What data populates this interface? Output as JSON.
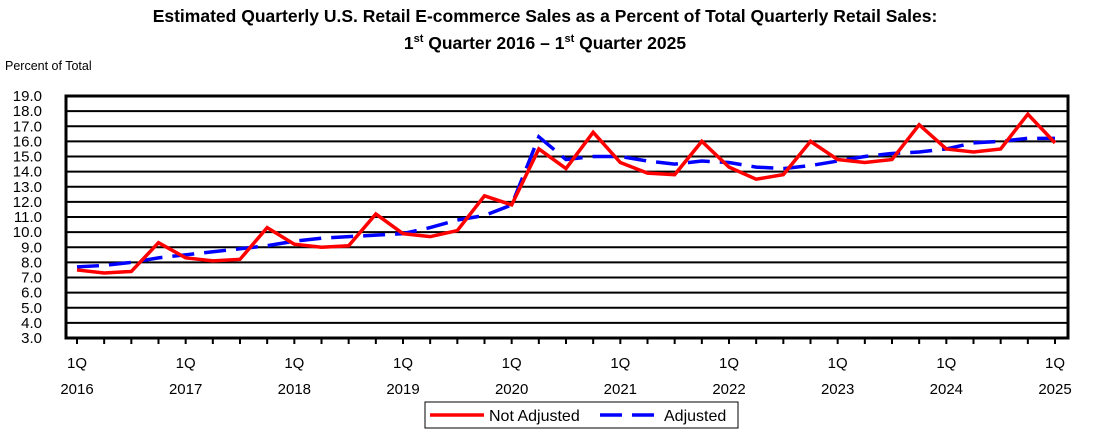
{
  "chart_data": {
    "type": "line",
    "title_line1": "Estimated Quarterly U.S. Retail E-commerce Sales as a Percent of Total Quarterly Retail Sales:",
    "title_line2": {
      "q1": "1",
      "sup1": "st",
      "mid": " Quarter 2016 – ",
      "q2": "1",
      "sup2": "st",
      "end": " Quarter 2025"
    },
    "ylabel": "Percent of Total",
    "ylim": [
      3.0,
      19.0
    ],
    "yticks": [
      "3.0",
      "4.0",
      "5.0",
      "6.0",
      "7.0",
      "8.0",
      "9.0",
      "10.0",
      "11.0",
      "12.0",
      "13.0",
      "14.0",
      "15.0",
      "16.0",
      "17.0",
      "18.0",
      "19.0"
    ],
    "grid": true,
    "x_start": "1Q 2016",
    "x_end": "1Q 2025",
    "xtick_labels": [
      {
        "q": "1Q",
        "year": "2016"
      },
      {
        "q": "1Q",
        "year": "2017"
      },
      {
        "q": "1Q",
        "year": "2018"
      },
      {
        "q": "1Q",
        "year": "2019"
      },
      {
        "q": "1Q",
        "year": "2020"
      },
      {
        "q": "1Q",
        "year": "2021"
      },
      {
        "q": "1Q",
        "year": "2022"
      },
      {
        "q": "1Q",
        "year": "2023"
      },
      {
        "q": "1Q",
        "year": "2024"
      },
      {
        "q": "1Q",
        "year": "2025"
      }
    ],
    "legend_placement": "bottom",
    "series": [
      {
        "name": "Not Adjusted",
        "color": "#ff0000",
        "style": "solid",
        "values": [
          7.5,
          7.3,
          7.4,
          9.3,
          8.3,
          8.1,
          8.2,
          10.3,
          9.2,
          9.0,
          9.1,
          11.2,
          9.9,
          9.7,
          10.1,
          12.4,
          11.8,
          15.5,
          14.2,
          16.6,
          14.6,
          13.9,
          13.8,
          16.0,
          14.3,
          13.5,
          13.8,
          16.0,
          14.8,
          14.6,
          14.8,
          17.1,
          15.5,
          15.3,
          15.5,
          17.8,
          15.9
        ]
      },
      {
        "name": "Adjusted",
        "color": "#0000ff",
        "style": "dashed",
        "values": [
          7.7,
          7.8,
          8.0,
          8.3,
          8.5,
          8.7,
          8.9,
          9.1,
          9.4,
          9.6,
          9.7,
          9.8,
          9.9,
          10.3,
          10.8,
          11.1,
          11.8,
          16.3,
          14.8,
          15.0,
          15.0,
          14.7,
          14.5,
          14.7,
          14.6,
          14.3,
          14.2,
          14.4,
          14.7,
          15.0,
          15.2,
          15.3,
          15.5,
          15.9,
          16.0,
          16.2,
          16.2
        ]
      }
    ]
  }
}
